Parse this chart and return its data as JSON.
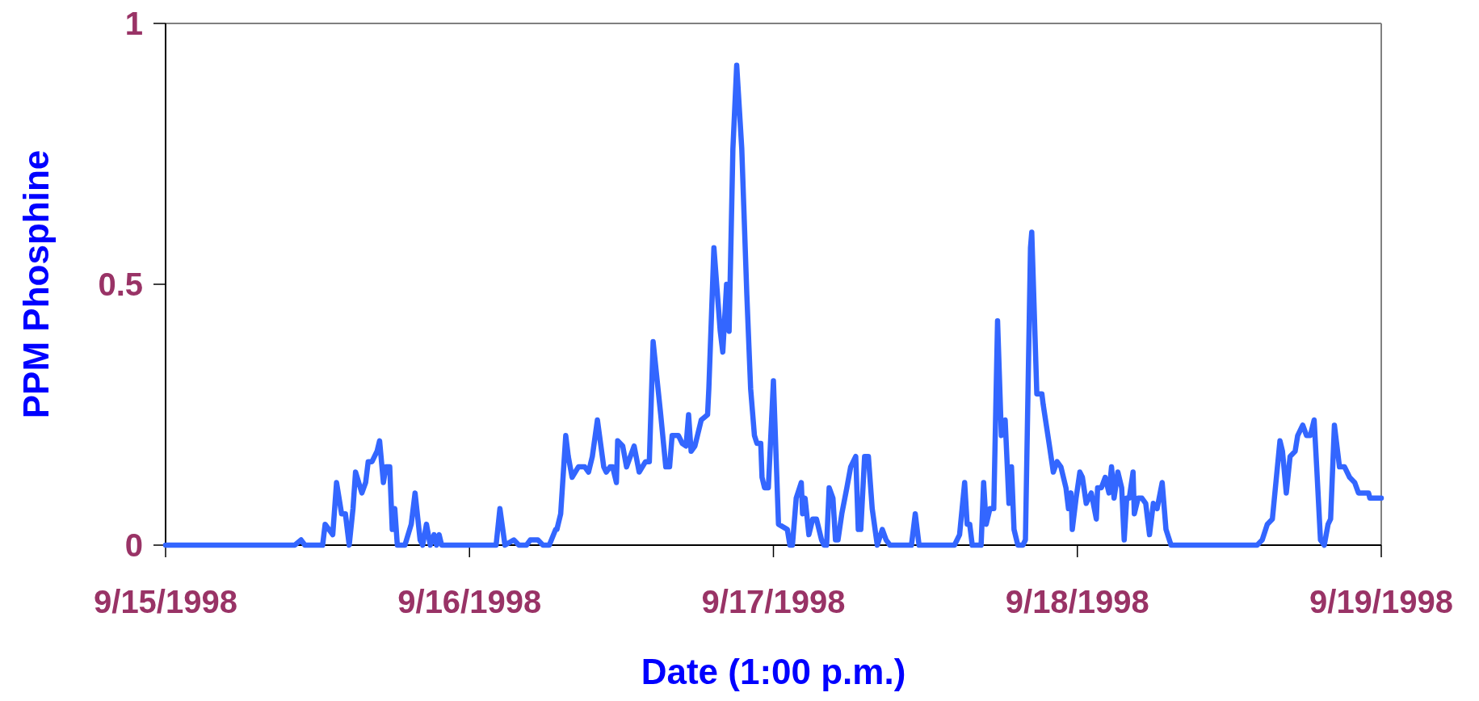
{
  "chart_data": {
    "type": "line",
    "xlabel": "Date (1:00 p.m.)",
    "ylabel": "PPM Phosphine",
    "color": "#3366ff",
    "xlim": [
      "1998-09-15T13:00",
      "1998-09-19T13:00"
    ],
    "xticks": [
      {
        "value": "1998-09-15T13:00",
        "label": "9/15/1998"
      },
      {
        "value": "1998-09-16T13:00",
        "label": "9/16/1998"
      },
      {
        "value": "1998-09-17T13:00",
        "label": "9/17/1998"
      },
      {
        "value": "1998-09-18T13:00",
        "label": "9/18/1998"
      },
      {
        "value": "1998-09-19T13:00",
        "label": "9/19/1998"
      }
    ],
    "ylim": [
      0,
      1
    ],
    "yticks": [
      0,
      0.5,
      1
    ],
    "x": [
      "1998-09-15T13:00",
      "1998-09-15T23:12",
      "1998-09-15T23:42",
      "1998-09-16T00:00",
      "1998-09-16T01:24",
      "1998-09-16T01:36",
      "1998-09-16T02:12",
      "1998-09-16T02:30",
      "1998-09-16T02:54",
      "1998-09-16T03:12",
      "1998-09-16T03:30",
      "1998-09-16T03:48",
      "1998-09-16T04:00",
      "1998-09-16T04:30",
      "1998-09-16T04:48",
      "1998-09-16T05:00",
      "1998-09-16T05:18",
      "1998-09-16T05:30",
      "1998-09-16T05:42",
      "1998-09-16T05:54",
      "1998-09-16T06:12",
      "1998-09-16T06:24",
      "1998-09-16T06:42",
      "1998-09-16T06:54",
      "1998-09-16T07:06",
      "1998-09-16T07:18",
      "1998-09-16T07:54",
      "1998-09-16T08:24",
      "1998-09-16T08:42",
      "1998-09-16T09:06",
      "1998-09-16T09:18",
      "1998-09-16T09:36",
      "1998-09-16T09:54",
      "1998-09-16T10:12",
      "1998-09-16T10:24",
      "1998-09-16T10:36",
      "1998-09-16T10:48",
      "1998-09-16T15:06",
      "1998-09-16T15:24",
      "1998-09-16T15:48",
      "1998-09-16T16:30",
      "1998-09-16T16:54",
      "1998-09-16T17:30",
      "1998-09-16T17:48",
      "1998-09-16T18:24",
      "1998-09-16T18:48",
      "1998-09-16T19:18",
      "1998-09-16T19:48",
      "1998-09-16T19:54",
      "1998-09-16T20:12",
      "1998-09-16T20:36",
      "1998-09-16T20:48",
      "1998-09-16T21:06",
      "1998-09-16T21:36",
      "1998-09-16T22:06",
      "1998-09-16T22:24",
      "1998-09-16T22:42",
      "1998-09-16T23:06",
      "1998-09-16T23:36",
      "1998-09-16T23:48",
      "1998-09-17T00:06",
      "1998-09-17T00:18",
      "1998-09-17T00:36",
      "1998-09-17T00:42",
      "1998-09-17T01:06",
      "1998-09-17T01:24",
      "1998-09-17T02:00",
      "1998-09-17T02:24",
      "1998-09-17T02:54",
      "1998-09-17T03:12",
      "1998-09-17T03:30",
      "1998-09-17T03:48",
      "1998-09-17T04:06",
      "1998-09-17T04:30",
      "1998-09-17T04:48",
      "1998-09-17T05:00",
      "1998-09-17T05:30",
      "1998-09-17T05:48",
      "1998-09-17T06:06",
      "1998-09-17T06:18",
      "1998-09-17T06:30",
      "1998-09-17T06:48",
      "1998-09-17T07:18",
      "1998-09-17T07:48",
      "1998-09-17T07:54",
      "1998-09-17T08:18",
      "1998-09-17T08:48",
      "1998-09-17T09:00",
      "1998-09-17T09:18",
      "1998-09-17T09:30",
      "1998-09-17T09:48",
      "1998-09-17T10:06",
      "1998-09-17T10:30",
      "1998-09-17T10:54",
      "1998-09-17T11:12",
      "1998-09-17T11:30",
      "1998-09-17T11:42",
      "1998-09-17T12:00",
      "1998-09-17T12:06",
      "1998-09-17T12:18",
      "1998-09-17T12:36",
      "1998-09-17T13:00",
      "1998-09-17T13:24",
      "1998-09-17T14:06",
      "1998-09-17T14:18",
      "1998-09-17T14:30",
      "1998-09-17T14:48",
      "1998-09-17T15:12",
      "1998-09-17T15:18",
      "1998-09-17T15:30",
      "1998-09-17T15:48",
      "1998-09-17T16:06",
      "1998-09-17T16:24",
      "1998-09-17T16:48",
      "1998-09-17T17:00",
      "1998-09-17T17:12",
      "1998-09-17T17:24",
      "1998-09-17T17:42",
      "1998-09-17T17:54",
      "1998-09-17T18:06",
      "1998-09-17T18:24",
      "1998-09-17T18:48",
      "1998-09-17T19:06",
      "1998-09-17T19:30",
      "1998-09-17T19:42",
      "1998-09-17T19:54",
      "1998-09-17T20:12",
      "1998-09-17T20:30",
      "1998-09-17T20:48",
      "1998-09-17T21:12",
      "1998-09-17T21:36",
      "1998-09-17T21:54",
      "1998-09-17T22:12",
      "1998-09-17T23:54",
      "1998-09-18T00:12",
      "1998-09-18T00:30",
      "1998-09-18T03:18",
      "1998-09-18T03:42",
      "1998-09-18T04:06",
      "1998-09-18T04:18",
      "1998-09-18T04:30",
      "1998-09-18T04:42",
      "1998-09-18T05:24",
      "1998-09-18T05:36",
      "1998-09-18T05:48",
      "1998-09-18T06:06",
      "1998-09-18T06:24",
      "1998-09-18T06:42",
      "1998-09-18T07:00",
      "1998-09-18T07:18",
      "1998-09-18T07:36",
      "1998-09-18T07:48",
      "1998-09-18T08:00",
      "1998-09-18T08:18",
      "1998-09-18T08:42",
      "1998-09-18T08:54",
      "1998-09-18T09:18",
      "1998-09-18T09:24",
      "1998-09-18T09:48",
      "1998-09-18T10:12",
      "1998-09-18T10:18",
      "1998-09-18T10:48",
      "1998-09-18T11:06",
      "1998-09-18T11:24",
      "1998-09-18T11:42",
      "1998-09-18T12:06",
      "1998-09-18T12:18",
      "1998-09-18T12:30",
      "1998-09-18T12:36",
      "1998-09-18T12:54",
      "1998-09-18T13:12",
      "1998-09-18T13:24",
      "1998-09-18T13:42",
      "1998-09-18T14:06",
      "1998-09-18T14:30",
      "1998-09-18T14:36",
      "1998-09-18T14:54",
      "1998-09-18T15:12",
      "1998-09-18T15:30",
      "1998-09-18T15:42",
      "1998-09-18T15:54",
      "1998-09-18T16:12",
      "1998-09-18T16:30",
      "1998-09-18T16:42",
      "1998-09-18T16:54",
      "1998-09-18T17:06",
      "1998-09-18T17:24",
      "1998-09-18T17:30",
      "1998-09-18T17:48",
      "1998-09-18T18:06",
      "1998-09-18T18:24",
      "1998-09-18T18:42",
      "1998-09-18T19:00",
      "1998-09-18T19:18",
      "1998-09-18T19:42",
      "1998-09-18T20:00",
      "1998-09-18T20:24",
      "1998-09-19T03:12",
      "1998-09-19T03:36",
      "1998-09-19T04:00",
      "1998-09-19T04:24",
      "1998-09-19T05:00",
      "1998-09-19T05:12",
      "1998-09-19T05:30",
      "1998-09-19T05:48",
      "1998-09-19T06:12",
      "1998-09-19T06:24",
      "1998-09-19T06:48",
      "1998-09-19T07:06",
      "1998-09-19T07:24",
      "1998-09-19T07:42",
      "1998-09-19T07:54",
      "1998-09-19T08:12",
      "1998-09-19T08:30",
      "1998-09-19T08:48",
      "1998-09-19T09:00",
      "1998-09-19T09:18",
      "1998-09-19T09:42",
      "1998-09-19T10:06",
      "1998-09-19T10:30",
      "1998-09-19T10:54",
      "1998-09-19T11:12",
      "1998-09-19T12:00",
      "1998-09-19T12:06",
      "1998-09-19T13:00"
    ],
    "values": [
      0,
      0,
      0.01,
      0,
      0,
      0.04,
      0.02,
      0.12,
      0.06,
      0.06,
      0,
      0.07,
      0.14,
      0.1,
      0.12,
      0.16,
      0.16,
      0.17,
      0.18,
      0.2,
      0.12,
      0.15,
      0.15,
      0.03,
      0.07,
      0,
      0,
      0.04,
      0.1,
      0.01,
      0,
      0.04,
      0,
      0.02,
      0,
      0.02,
      0,
      0,
      0.07,
      0,
      0.01,
      0,
      0,
      0.01,
      0.01,
      0,
      0,
      0.03,
      0.03,
      0.06,
      0.21,
      0.17,
      0.13,
      0.15,
      0.15,
      0.14,
      0.17,
      0.24,
      0.15,
      0.14,
      0.15,
      0.15,
      0.12,
      0.2,
      0.19,
      0.15,
      0.19,
      0.14,
      0.16,
      0.16,
      0.39,
      0.32,
      0.25,
      0.15,
      0.15,
      0.21,
      0.21,
      0.195,
      0.19,
      0.25,
      0.18,
      0.19,
      0.24,
      0.25,
      0.3,
      0.57,
      0.41,
      0.37,
      0.5,
      0.41,
      0.76,
      0.92,
      0.76,
      0.48,
      0.3,
      0.21,
      0.195,
      0.195,
      0.13,
      0.11,
      0.11,
      0.315,
      0.04,
      0.03,
      0,
      0,
      0.09,
      0.12,
      0.06,
      0.09,
      0.02,
      0.05,
      0.05,
      0.01,
      0,
      0,
      0.11,
      0.09,
      0.01,
      0.01,
      0.06,
      0.11,
      0.15,
      0.17,
      0.03,
      0.03,
      0.17,
      0.17,
      0.07,
      0,
      0.03,
      0.01,
      0,
      0,
      0.06,
      0,
      0,
      0.02,
      0.12,
      0.04,
      0.04,
      0,
      0,
      0.12,
      0.04,
      0.07,
      0.07,
      0.43,
      0.21,
      0.24,
      0.08,
      0.15,
      0.03,
      0,
      0,
      0.01,
      0.57,
      0.6,
      0.29,
      0.29,
      0.27,
      0.19,
      0.14,
      0.16,
      0.15,
      0.11,
      0.07,
      0.1,
      0.03,
      0.09,
      0.14,
      0.13,
      0.08,
      0.1,
      0.05,
      0.11,
      0.11,
      0.13,
      0.1,
      0.15,
      0.09,
      0.14,
      0.11,
      0.01,
      0.09,
      0.09,
      0.14,
      0.06,
      0.09,
      0.09,
      0.08,
      0.02,
      0.08,
      0.07,
      0.12,
      0.03,
      0,
      0,
      0.01,
      0.04,
      0.05,
      0.2,
      0.18,
      0.1,
      0.17,
      0.18,
      0.21,
      0.23,
      0.21,
      0.21,
      0.24,
      0.15,
      0.01,
      0,
      0.04,
      0.05,
      0.23,
      0.15,
      0.15,
      0.13,
      0.12,
      0.1,
      0.1,
      0.09,
      0.09
    ]
  }
}
